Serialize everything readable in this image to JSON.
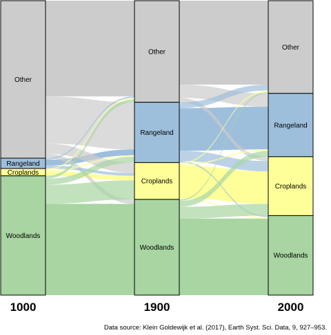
{
  "source_note": "Data source: Klein Goldewijk et al. (2017), Earth Syst. Sci. Data, 9, 927–953.",
  "colors": {
    "Other": "#cccccc",
    "Rangeland": "#9ebfdc",
    "Croplands": "#ffff99",
    "Woodlands": "#a8d5a2",
    "border": "#000000"
  },
  "chart_data": {
    "type": "alluvial",
    "title": "",
    "xlabel": "",
    "ylabel": "",
    "categories": [
      "Other",
      "Rangeland",
      "Croplands",
      "Woodlands"
    ],
    "years": [
      "1000",
      "1900",
      "2000"
    ],
    "stacks": {
      "1000": {
        "Other": 53.5,
        "Rangeland": 3.5,
        "Croplands": 2.5,
        "Woodlands": 40.5
      },
      "1900": {
        "Other": 34.5,
        "Rangeland": 20.5,
        "Croplands": 12.5,
        "Woodlands": 32.5
      },
      "2000": {
        "Other": 31.5,
        "Rangeland": 21.5,
        "Croplands": 20.0,
        "Woodlands": 27.0
      }
    },
    "flows": [
      {
        "from_year": "1000",
        "to_year": "1900",
        "from": "Other",
        "to": "Other",
        "value": 32.5
      },
      {
        "from_year": "1000",
        "to_year": "1900",
        "from": "Other",
        "to": "Rangeland",
        "value": 16.0
      },
      {
        "from_year": "1000",
        "to_year": "1900",
        "from": "Other",
        "to": "Croplands",
        "value": 3.5
      },
      {
        "from_year": "1000",
        "to_year": "1900",
        "from": "Other",
        "to": "Woodlands",
        "value": 1.5
      },
      {
        "from_year": "1000",
        "to_year": "1900",
        "from": "Rangeland",
        "to": "Other",
        "value": 0.5
      },
      {
        "from_year": "1000",
        "to_year": "1900",
        "from": "Rangeland",
        "to": "Rangeland",
        "value": 2.0
      },
      {
        "from_year": "1000",
        "to_year": "1900",
        "from": "Rangeland",
        "to": "Croplands",
        "value": 1.0
      },
      {
        "from_year": "1000",
        "to_year": "1900",
        "from": "Croplands",
        "to": "Other",
        "value": 0.5
      },
      {
        "from_year": "1000",
        "to_year": "1900",
        "from": "Croplands",
        "to": "Rangeland",
        "value": 0.5
      },
      {
        "from_year": "1000",
        "to_year": "1900",
        "from": "Croplands",
        "to": "Croplands",
        "value": 1.5
      },
      {
        "from_year": "1000",
        "to_year": "1900",
        "from": "Woodlands",
        "to": "Other",
        "value": 1.0
      },
      {
        "from_year": "1000",
        "to_year": "1900",
        "from": "Woodlands",
        "to": "Rangeland",
        "value": 2.0
      },
      {
        "from_year": "1000",
        "to_year": "1900",
        "from": "Woodlands",
        "to": "Croplands",
        "value": 6.5
      },
      {
        "from_year": "1000",
        "to_year": "1900",
        "from": "Woodlands",
        "to": "Woodlands",
        "value": 31.0
      },
      {
        "from_year": "1900",
        "to_year": "2000",
        "from": "Other",
        "to": "Other",
        "value": 28.5
      },
      {
        "from_year": "1900",
        "to_year": "2000",
        "from": "Other",
        "to": "Rangeland",
        "value": 4.5
      },
      {
        "from_year": "1900",
        "to_year": "2000",
        "from": "Other",
        "to": "Croplands",
        "value": 1.5
      },
      {
        "from_year": "1900",
        "to_year": "2000",
        "from": "Rangeland",
        "to": "Other",
        "value": 2.0
      },
      {
        "from_year": "1900",
        "to_year": "2000",
        "from": "Rangeland",
        "to": "Rangeland",
        "value": 14.5
      },
      {
        "from_year": "1900",
        "to_year": "2000",
        "from": "Rangeland",
        "to": "Croplands",
        "value": 3.5
      },
      {
        "from_year": "1900",
        "to_year": "2000",
        "from": "Rangeland",
        "to": "Woodlands",
        "value": 0.5
      },
      {
        "from_year": "1900",
        "to_year": "2000",
        "from": "Croplands",
        "to": "Other",
        "value": 0.5
      },
      {
        "from_year": "1900",
        "to_year": "2000",
        "from": "Croplands",
        "to": "Rangeland",
        "value": 0.5
      },
      {
        "from_year": "1900",
        "to_year": "2000",
        "from": "Croplands",
        "to": "Croplands",
        "value": 11.0
      },
      {
        "from_year": "1900",
        "to_year": "2000",
        "from": "Croplands",
        "to": "Woodlands",
        "value": 0.5
      },
      {
        "from_year": "1900",
        "to_year": "2000",
        "from": "Woodlands",
        "to": "Other",
        "value": 0.5
      },
      {
        "from_year": "1900",
        "to_year": "2000",
        "from": "Woodlands",
        "to": "Rangeland",
        "value": 2.0
      },
      {
        "from_year": "1900",
        "to_year": "2000",
        "from": "Woodlands",
        "to": "Croplands",
        "value": 4.0
      },
      {
        "from_year": "1900",
        "to_year": "2000",
        "from": "Woodlands",
        "to": "Woodlands",
        "value": 26.0
      }
    ]
  }
}
